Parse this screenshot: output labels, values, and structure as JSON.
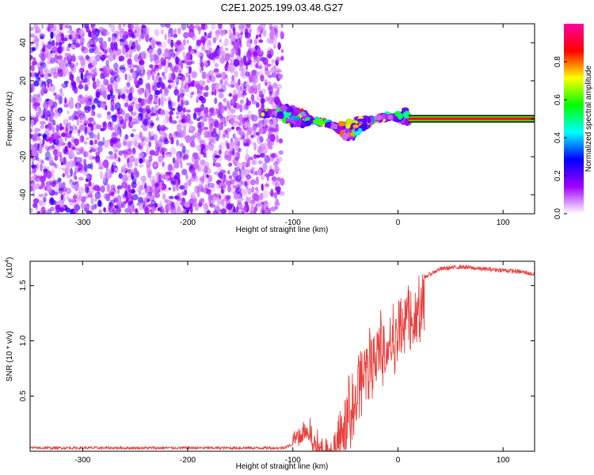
{
  "figure_title": "C2E1.2025.199.03.48.G27",
  "chart_data": [
    {
      "type": "heatmap",
      "title": "C2E1.2025.199.03.48.G27",
      "xlabel": "Height of straight line (km)",
      "ylabel": "Frequency (Hz)",
      "xlim": [
        -350,
        130
      ],
      "ylim": [
        -50,
        50
      ],
      "xticks": [
        -300,
        -200,
        -100,
        0,
        100
      ],
      "yticks": [
        -40,
        -20,
        0,
        20,
        40
      ],
      "colorbar": {
        "label": "Normalized spectral amplitude",
        "range": [
          0,
          1
        ],
        "ticks": [
          0,
          0.2,
          0.4,
          0.6,
          0.8
        ],
        "colors": [
          "#ffffff",
          "#a000ff",
          "#0000ff",
          "#00ffff",
          "#00ff00",
          "#ffff00",
          "#ff0000",
          "#ff00a0"
        ]
      },
      "regions": [
        {
          "name": "noise",
          "x_range": [
            -350,
            -110
          ],
          "y_range": [
            -50,
            50
          ],
          "amplitude": 0.15
        },
        {
          "name": "signal_track",
          "points": [
            [
              -130,
              3
            ],
            [
              -110,
              3
            ],
            [
              -100,
              1
            ],
            [
              -90,
              0
            ],
            [
              -80,
              -1
            ],
            [
              -70,
              -2
            ],
            [
              -60,
              -4
            ],
            [
              -50,
              -6
            ],
            [
              -45,
              -6
            ],
            [
              -40,
              -4
            ],
            [
              -30,
              -2
            ],
            [
              -20,
              0
            ],
            [
              -10,
              1
            ],
            [
              0,
              1
            ],
            [
              10,
              1
            ]
          ],
          "amplitude": 0.7
        },
        {
          "name": "carrier_line",
          "x_range": [
            10,
            130
          ],
          "y": 0,
          "amplitude": 0.9
        }
      ],
      "grid": false,
      "legend": "none"
    },
    {
      "type": "line",
      "xlabel": "Height of straight line (km)",
      "ylabel": "SNR (10 * v/v)",
      "scale_label": "(x10",
      "scale_exponent": "4",
      "xlim": [
        -350,
        130
      ],
      "ylim": [
        0,
        1.72
      ],
      "xticks": [
        -300,
        -200,
        -100,
        0,
        100
      ],
      "yticks": [
        0.5,
        1.0,
        1.5
      ],
      "color": "#e8403c",
      "series": [
        {
          "values_envelope": [
            [
              -350,
              0.03
            ],
            [
              -300,
              0.03
            ],
            [
              -250,
              0.03
            ],
            [
              -200,
              0.03
            ],
            [
              -150,
              0.03
            ],
            [
              -110,
              0.03
            ],
            [
              -100,
              0.06
            ],
            [
              -95,
              0.08
            ],
            [
              -90,
              0.18
            ],
            [
              -85,
              0.22
            ],
            [
              -80,
              0.12
            ],
            [
              -70,
              0.06
            ],
            [
              -60,
              0.2
            ],
            [
              -50,
              0.5
            ],
            [
              -40,
              0.7
            ],
            [
              -30,
              1.0
            ],
            [
              -20,
              1.15
            ],
            [
              -10,
              1.25
            ],
            [
              0,
              1.3
            ],
            [
              10,
              1.45
            ],
            [
              20,
              1.55
            ],
            [
              30,
              1.6
            ],
            [
              40,
              1.65
            ],
            [
              60,
              1.67
            ],
            [
              80,
              1.65
            ],
            [
              100,
              1.64
            ],
            [
              120,
              1.62
            ],
            [
              130,
              1.6
            ]
          ]
        }
      ],
      "grid": false,
      "legend": "none"
    }
  ]
}
